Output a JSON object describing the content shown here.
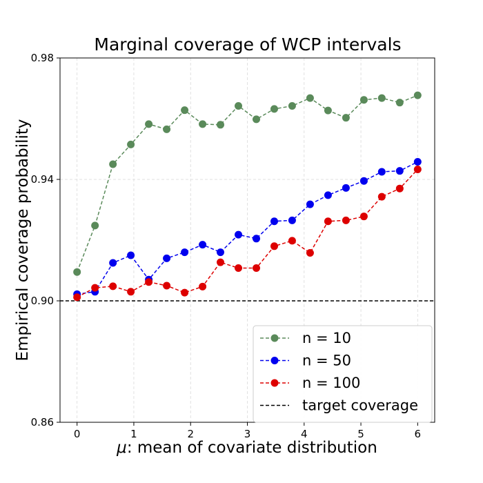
{
  "chart_data": {
    "type": "line",
    "title": "Marginal coverage of WCP intervals",
    "xlabel_symbol": "μ",
    "xlabel_rest": ": mean of covariate distribution",
    "ylabel": "Empirical coverage probability",
    "xlim": [
      -0.3,
      6.3
    ],
    "ylim": [
      0.86,
      0.98
    ],
    "xticks": [
      0,
      1,
      2,
      3,
      4,
      5,
      6
    ],
    "yticks": [
      0.86,
      0.9,
      0.94,
      0.98
    ],
    "ytick_labels": [
      "0.86",
      "0.90",
      "0.94",
      "0.98"
    ],
    "grid": true,
    "legend_position": "lower-right",
    "x": [
      0,
      0.316,
      0.632,
      0.947,
      1.263,
      1.579,
      1.895,
      2.211,
      2.526,
      2.842,
      3.158,
      3.474,
      3.789,
      4.105,
      4.421,
      4.737,
      5.053,
      5.368,
      5.684,
      6.0
    ],
    "series": [
      {
        "name": "n = 10",
        "color": "#5a8a5a",
        "values": [
          0.9095,
          0.9248,
          0.945,
          0.9515,
          0.9582,
          0.9565,
          0.9628,
          0.9582,
          0.958,
          0.9642,
          0.9598,
          0.9632,
          0.9642,
          0.9668,
          0.9627,
          0.9603,
          0.9662,
          0.9668,
          0.9653,
          0.9677
        ]
      },
      {
        "name": "n = 50",
        "color": "#0000ee",
        "values": [
          0.9022,
          0.903,
          0.9125,
          0.915,
          0.907,
          0.914,
          0.916,
          0.9185,
          0.916,
          0.9218,
          0.9205,
          0.9262,
          0.9265,
          0.9318,
          0.9348,
          0.9372,
          0.9395,
          0.9425,
          0.9428,
          0.9458
        ]
      },
      {
        "name": "n = 100",
        "color": "#dd0000",
        "values": [
          0.9012,
          0.9043,
          0.9048,
          0.903,
          0.9062,
          0.905,
          0.9027,
          0.9047,
          0.9127,
          0.9108,
          0.9108,
          0.918,
          0.9198,
          0.9158,
          0.9262,
          0.9265,
          0.9278,
          0.9343,
          0.937,
          0.9433
        ]
      }
    ],
    "target_line": {
      "name": "target coverage",
      "value": 0.9,
      "color": "#000000"
    }
  }
}
